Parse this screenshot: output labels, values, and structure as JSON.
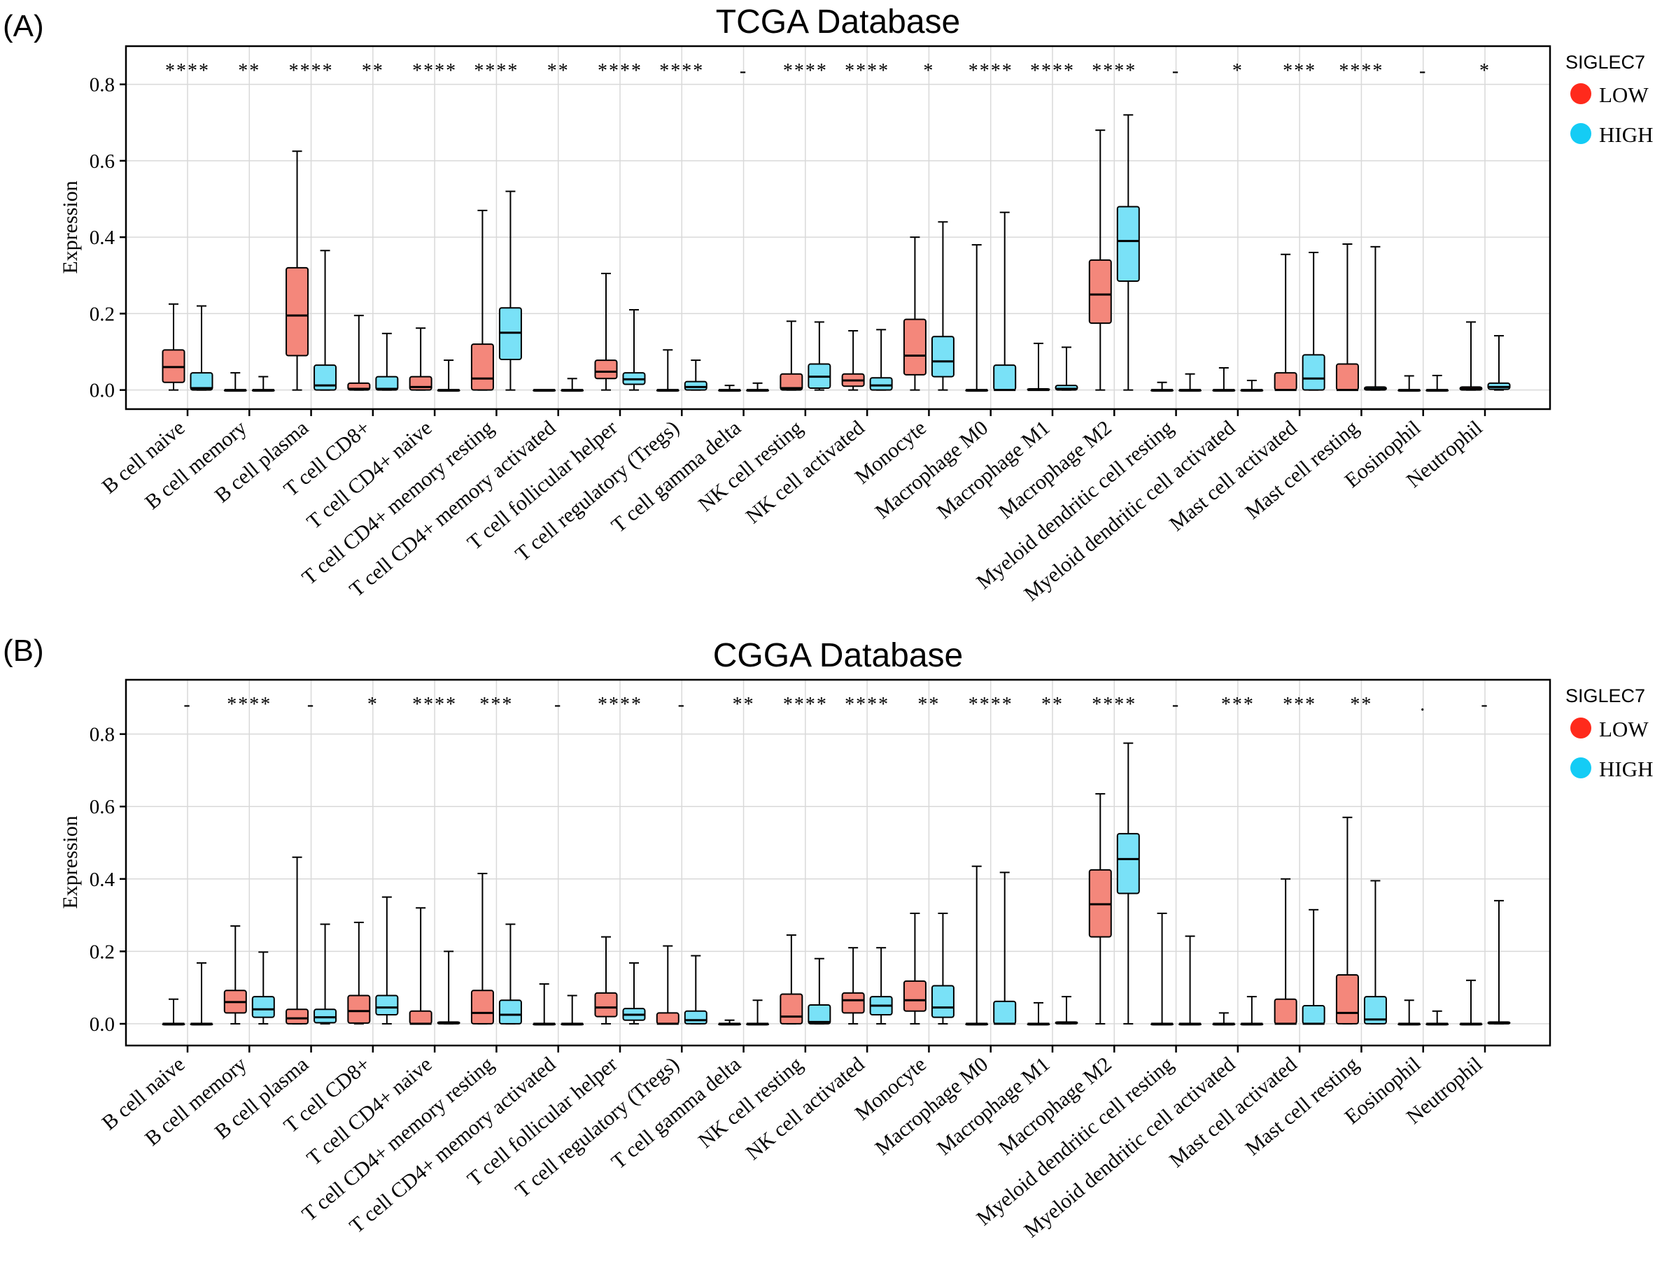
{
  "colors": {
    "low": "#f4877b",
    "high": "#79e1f7",
    "legend_low": "#ff2a1c",
    "legend_high": "#14ccf5"
  },
  "chart_data": [
    {
      "panel_label": "(A)",
      "type": "box",
      "title": "TCGA Database",
      "xlabel": "",
      "ylabel": "Expression",
      "ylim": [
        -0.05,
        0.9
      ],
      "yticks": [
        "0.0",
        "0.2",
        "0.4",
        "0.6",
        "0.8"
      ],
      "grid": true,
      "legend": {
        "title": "SIGLEC7",
        "position": "right",
        "entries": [
          "LOW",
          "HIGH"
        ]
      },
      "categories": [
        "B cell naive",
        "B cell memory",
        "B cell plasma",
        "T cell CD8+",
        "T cell CD4+ naive",
        "T cell CD4+ memory resting",
        "T cell CD4+ memory activated",
        "T cell follicular helper",
        "T cell regulatory (Tregs)",
        "T cell gamma delta",
        "NK cell resting",
        "NK cell activated",
        "Monocyte",
        "Macrophage M0",
        "Macrophage M1",
        "Macrophage M2",
        "Myeloid dendritic cell resting",
        "Myeloid dendritic cell activated",
        "Mast cell activated",
        "Mast cell resting",
        "Eosinophil",
        "Neutrophil"
      ],
      "significance": [
        "****",
        "**",
        "****",
        "**",
        "****",
        "****",
        "**",
        "****",
        "****",
        "-",
        "****",
        "****",
        "*",
        "****",
        "****",
        "****",
        "-",
        "*",
        "***",
        "****",
        "-",
        "*"
      ],
      "series": [
        {
          "name": "LOW",
          "boxes": [
            {
              "min": 0,
              "q1": 0.02,
              "median": 0.06,
              "q3": 0.105,
              "max": 0.225
            },
            {
              "min": 0,
              "q1": 0,
              "median": 0,
              "q3": 0,
              "max": 0.045
            },
            {
              "min": 0,
              "q1": 0.09,
              "median": 0.195,
              "q3": 0.32,
              "max": 0.625
            },
            {
              "min": 0,
              "q1": 0,
              "median": 0.003,
              "q3": 0.018,
              "max": 0.195
            },
            {
              "min": 0,
              "q1": 0,
              "median": 0.008,
              "q3": 0.035,
              "max": 0.162
            },
            {
              "min": 0,
              "q1": 0,
              "median": 0.03,
              "q3": 0.12,
              "max": 0.47
            },
            {
              "min": 0,
              "q1": 0,
              "median": 0,
              "q3": 0,
              "max": 0
            },
            {
              "min": 0,
              "q1": 0.03,
              "median": 0.048,
              "q3": 0.078,
              "max": 0.305
            },
            {
              "min": 0,
              "q1": 0,
              "median": 0,
              "q3": 0,
              "max": 0.105
            },
            {
              "min": 0,
              "q1": 0,
              "median": 0,
              "q3": 0,
              "max": 0.012
            },
            {
              "min": 0,
              "q1": 0,
              "median": 0.005,
              "q3": 0.042,
              "max": 0.18
            },
            {
              "min": 0,
              "q1": 0.01,
              "median": 0.025,
              "q3": 0.042,
              "max": 0.155
            },
            {
              "min": 0,
              "q1": 0.04,
              "median": 0.09,
              "q3": 0.185,
              "max": 0.4
            },
            {
              "min": 0,
              "q1": 0,
              "median": 0,
              "q3": 0,
              "max": 0.38
            },
            {
              "min": 0,
              "q1": 0,
              "median": 0,
              "q3": 0.003,
              "max": 0.122
            },
            {
              "min": 0,
              "q1": 0.175,
              "median": 0.25,
              "q3": 0.34,
              "max": 0.68
            },
            {
              "min": 0,
              "q1": 0,
              "median": 0,
              "q3": 0,
              "max": 0.02
            },
            {
              "min": 0,
              "q1": 0,
              "median": 0,
              "q3": 0,
              "max": 0.058
            },
            {
              "min": 0,
              "q1": 0,
              "median": 0,
              "q3": 0.045,
              "max": 0.355
            },
            {
              "min": 0,
              "q1": 0,
              "median": 0,
              "q3": 0.068,
              "max": 0.382
            },
            {
              "min": 0,
              "q1": 0,
              "median": 0,
              "q3": 0,
              "max": 0.037
            },
            {
              "min": 0,
              "q1": 0,
              "median": 0.003,
              "q3": 0.008,
              "max": 0.178
            }
          ]
        },
        {
          "name": "HIGH",
          "boxes": [
            {
              "min": 0,
              "q1": 0,
              "median": 0.005,
              "q3": 0.045,
              "max": 0.22
            },
            {
              "min": 0,
              "q1": 0,
              "median": 0,
              "q3": 0,
              "max": 0.035
            },
            {
              "min": 0,
              "q1": 0,
              "median": 0.012,
              "q3": 0.065,
              "max": 0.365
            },
            {
              "min": 0,
              "q1": 0,
              "median": 0.003,
              "q3": 0.035,
              "max": 0.148
            },
            {
              "min": 0,
              "q1": 0,
              "median": 0,
              "q3": 0,
              "max": 0.078
            },
            {
              "min": 0,
              "q1": 0.08,
              "median": 0.15,
              "q3": 0.215,
              "max": 0.52
            },
            {
              "min": 0,
              "q1": 0,
              "median": 0,
              "q3": 0,
              "max": 0.03
            },
            {
              "min": 0,
              "q1": 0.015,
              "median": 0.028,
              "q3": 0.045,
              "max": 0.21
            },
            {
              "min": 0,
              "q1": 0,
              "median": 0.008,
              "q3": 0.022,
              "max": 0.078
            },
            {
              "min": 0,
              "q1": 0,
              "median": 0,
              "q3": 0,
              "max": 0.018
            },
            {
              "min": 0,
              "q1": 0.005,
              "median": 0.035,
              "q3": 0.068,
              "max": 0.178
            },
            {
              "min": 0,
              "q1": 0,
              "median": 0.012,
              "q3": 0.032,
              "max": 0.158
            },
            {
              "min": 0,
              "q1": 0.035,
              "median": 0.075,
              "q3": 0.14,
              "max": 0.44
            },
            {
              "min": 0,
              "q1": 0,
              "median": 0,
              "q3": 0.065,
              "max": 0.465
            },
            {
              "min": 0,
              "q1": 0,
              "median": 0.003,
              "q3": 0.012,
              "max": 0.112
            },
            {
              "min": 0,
              "q1": 0.285,
              "median": 0.39,
              "q3": 0.48,
              "max": 0.72
            },
            {
              "min": 0,
              "q1": 0,
              "median": 0,
              "q3": 0,
              "max": 0.042
            },
            {
              "min": 0,
              "q1": 0,
              "median": 0,
              "q3": 0,
              "max": 0.025
            },
            {
              "min": 0,
              "q1": 0,
              "median": 0.03,
              "q3": 0.092,
              "max": 0.36
            },
            {
              "min": 0,
              "q1": 0,
              "median": 0.003,
              "q3": 0.008,
              "max": 0.375
            },
            {
              "min": 0,
              "q1": 0,
              "median": 0,
              "q3": 0,
              "max": 0.038
            },
            {
              "min": 0,
              "q1": 0.002,
              "median": 0.008,
              "q3": 0.018,
              "max": 0.142
            }
          ]
        }
      ]
    },
    {
      "panel_label": "(B)",
      "type": "box",
      "title": "CGGA Database",
      "xlabel": "",
      "ylabel": "Expression",
      "ylim": [
        -0.06,
        0.95
      ],
      "yticks": [
        "0.0",
        "0.2",
        "0.4",
        "0.6",
        "0.8"
      ],
      "grid": true,
      "legend": {
        "title": "SIGLEC7",
        "position": "right",
        "entries": [
          "LOW",
          "HIGH"
        ]
      },
      "categories": [
        "B cell naive",
        "B cell memory",
        "B cell plasma",
        "T cell CD8+",
        "T cell CD4+ naive",
        "T cell CD4+ memory resting",
        "T cell CD4+ memory activated",
        "T cell follicular helper",
        "T cell regulatory (Tregs)",
        "T cell gamma delta",
        "NK cell resting",
        "NK cell activated",
        "Monocyte",
        "Macrophage M0",
        "Macrophage M1",
        "Macrophage M2",
        "Myeloid dendritic cell resting",
        "Myeloid dendritic cell activated",
        "Mast cell activated",
        "Mast cell resting",
        "Eosinophil",
        "Neutrophil"
      ],
      "significance": [
        "-",
        "****",
        "-",
        "*",
        "****",
        "***",
        "-",
        "****",
        "-",
        "**",
        "****",
        "****",
        "**",
        "****",
        "**",
        "****",
        "-",
        "***",
        "***",
        "**",
        ".",
        "-"
      ],
      "series": [
        {
          "name": "LOW",
          "boxes": [
            {
              "min": 0,
              "q1": 0,
              "median": 0,
              "q3": 0,
              "max": 0.068
            },
            {
              "min": 0,
              "q1": 0.03,
              "median": 0.06,
              "q3": 0.092,
              "max": 0.27
            },
            {
              "min": 0,
              "q1": 0,
              "median": 0.015,
              "q3": 0.04,
              "max": 0.46
            },
            {
              "min": 0,
              "q1": 0.002,
              "median": 0.035,
              "q3": 0.078,
              "max": 0.28
            },
            {
              "min": 0,
              "q1": 0,
              "median": 0,
              "q3": 0.035,
              "max": 0.32
            },
            {
              "min": 0,
              "q1": 0,
              "median": 0.03,
              "q3": 0.092,
              "max": 0.415
            },
            {
              "min": 0,
              "q1": 0,
              "median": 0,
              "q3": 0,
              "max": 0.11
            },
            {
              "min": 0,
              "q1": 0.02,
              "median": 0.045,
              "q3": 0.085,
              "max": 0.24
            },
            {
              "min": 0,
              "q1": 0,
              "median": 0,
              "q3": 0.03,
              "max": 0.215
            },
            {
              "min": 0,
              "q1": 0,
              "median": 0,
              "q3": 0,
              "max": 0.01
            },
            {
              "min": 0,
              "q1": 0,
              "median": 0.02,
              "q3": 0.082,
              "max": 0.245
            },
            {
              "min": 0,
              "q1": 0.03,
              "median": 0.065,
              "q3": 0.085,
              "max": 0.21
            },
            {
              "min": 0,
              "q1": 0.035,
              "median": 0.065,
              "q3": 0.118,
              "max": 0.305
            },
            {
              "min": 0,
              "q1": 0,
              "median": 0,
              "q3": 0,
              "max": 0.435
            },
            {
              "min": 0,
              "q1": 0,
              "median": 0,
              "q3": 0,
              "max": 0.058
            },
            {
              "min": 0,
              "q1": 0.24,
              "median": 0.33,
              "q3": 0.425,
              "max": 0.635
            },
            {
              "min": 0,
              "q1": 0,
              "median": 0,
              "q3": 0,
              "max": 0.305
            },
            {
              "min": 0,
              "q1": 0,
              "median": 0,
              "q3": 0,
              "max": 0.03
            },
            {
              "min": 0,
              "q1": 0,
              "median": 0,
              "q3": 0.068,
              "max": 0.4
            },
            {
              "min": 0,
              "q1": 0,
              "median": 0.03,
              "q3": 0.135,
              "max": 0.57
            },
            {
              "min": 0,
              "q1": 0,
              "median": 0,
              "q3": 0,
              "max": 0.065
            },
            {
              "min": 0,
              "q1": 0,
              "median": 0,
              "q3": 0,
              "max": 0.12
            }
          ]
        },
        {
          "name": "HIGH",
          "boxes": [
            {
              "min": 0,
              "q1": 0,
              "median": 0,
              "q3": 0,
              "max": 0.168
            },
            {
              "min": 0,
              "q1": 0.018,
              "median": 0.04,
              "q3": 0.075,
              "max": 0.198
            },
            {
              "min": 0,
              "q1": 0.003,
              "median": 0.018,
              "q3": 0.04,
              "max": 0.275
            },
            {
              "min": 0,
              "q1": 0.025,
              "median": 0.045,
              "q3": 0.078,
              "max": 0.35
            },
            {
              "min": 0,
              "q1": 0,
              "median": 0.002,
              "q3": 0.005,
              "max": 0.2
            },
            {
              "min": 0,
              "q1": 0,
              "median": 0.025,
              "q3": 0.065,
              "max": 0.275
            },
            {
              "min": 0,
              "q1": 0,
              "median": 0,
              "q3": 0,
              "max": 0.078
            },
            {
              "min": 0,
              "q1": 0.01,
              "median": 0.025,
              "q3": 0.042,
              "max": 0.168
            },
            {
              "min": 0,
              "q1": 0,
              "median": 0.01,
              "q3": 0.035,
              "max": 0.188
            },
            {
              "min": 0,
              "q1": 0,
              "median": 0,
              "q3": 0,
              "max": 0.065
            },
            {
              "min": 0,
              "q1": 0,
              "median": 0.005,
              "q3": 0.052,
              "max": 0.18
            },
            {
              "min": 0,
              "q1": 0.025,
              "median": 0.05,
              "q3": 0.075,
              "max": 0.21
            },
            {
              "min": 0,
              "q1": 0.018,
              "median": 0.045,
              "q3": 0.105,
              "max": 0.305
            },
            {
              "min": 0,
              "q1": 0,
              "median": 0,
              "q3": 0.062,
              "max": 0.418
            },
            {
              "min": 0,
              "q1": 0,
              "median": 0.003,
              "q3": 0.005,
              "max": 0.075
            },
            {
              "min": 0,
              "q1": 0.36,
              "median": 0.455,
              "q3": 0.525,
              "max": 0.775
            },
            {
              "min": 0,
              "q1": 0,
              "median": 0,
              "q3": 0,
              "max": 0.242
            },
            {
              "min": 0,
              "q1": 0,
              "median": 0,
              "q3": 0,
              "max": 0.075
            },
            {
              "min": 0,
              "q1": 0,
              "median": 0,
              "q3": 0.05,
              "max": 0.315
            },
            {
              "min": 0,
              "q1": 0,
              "median": 0.012,
              "q3": 0.075,
              "max": 0.395
            },
            {
              "min": 0,
              "q1": 0,
              "median": 0,
              "q3": 0,
              "max": 0.035
            },
            {
              "min": 0,
              "q1": 0,
              "median": 0.003,
              "q3": 0.005,
              "max": 0.34
            }
          ]
        }
      ]
    }
  ]
}
